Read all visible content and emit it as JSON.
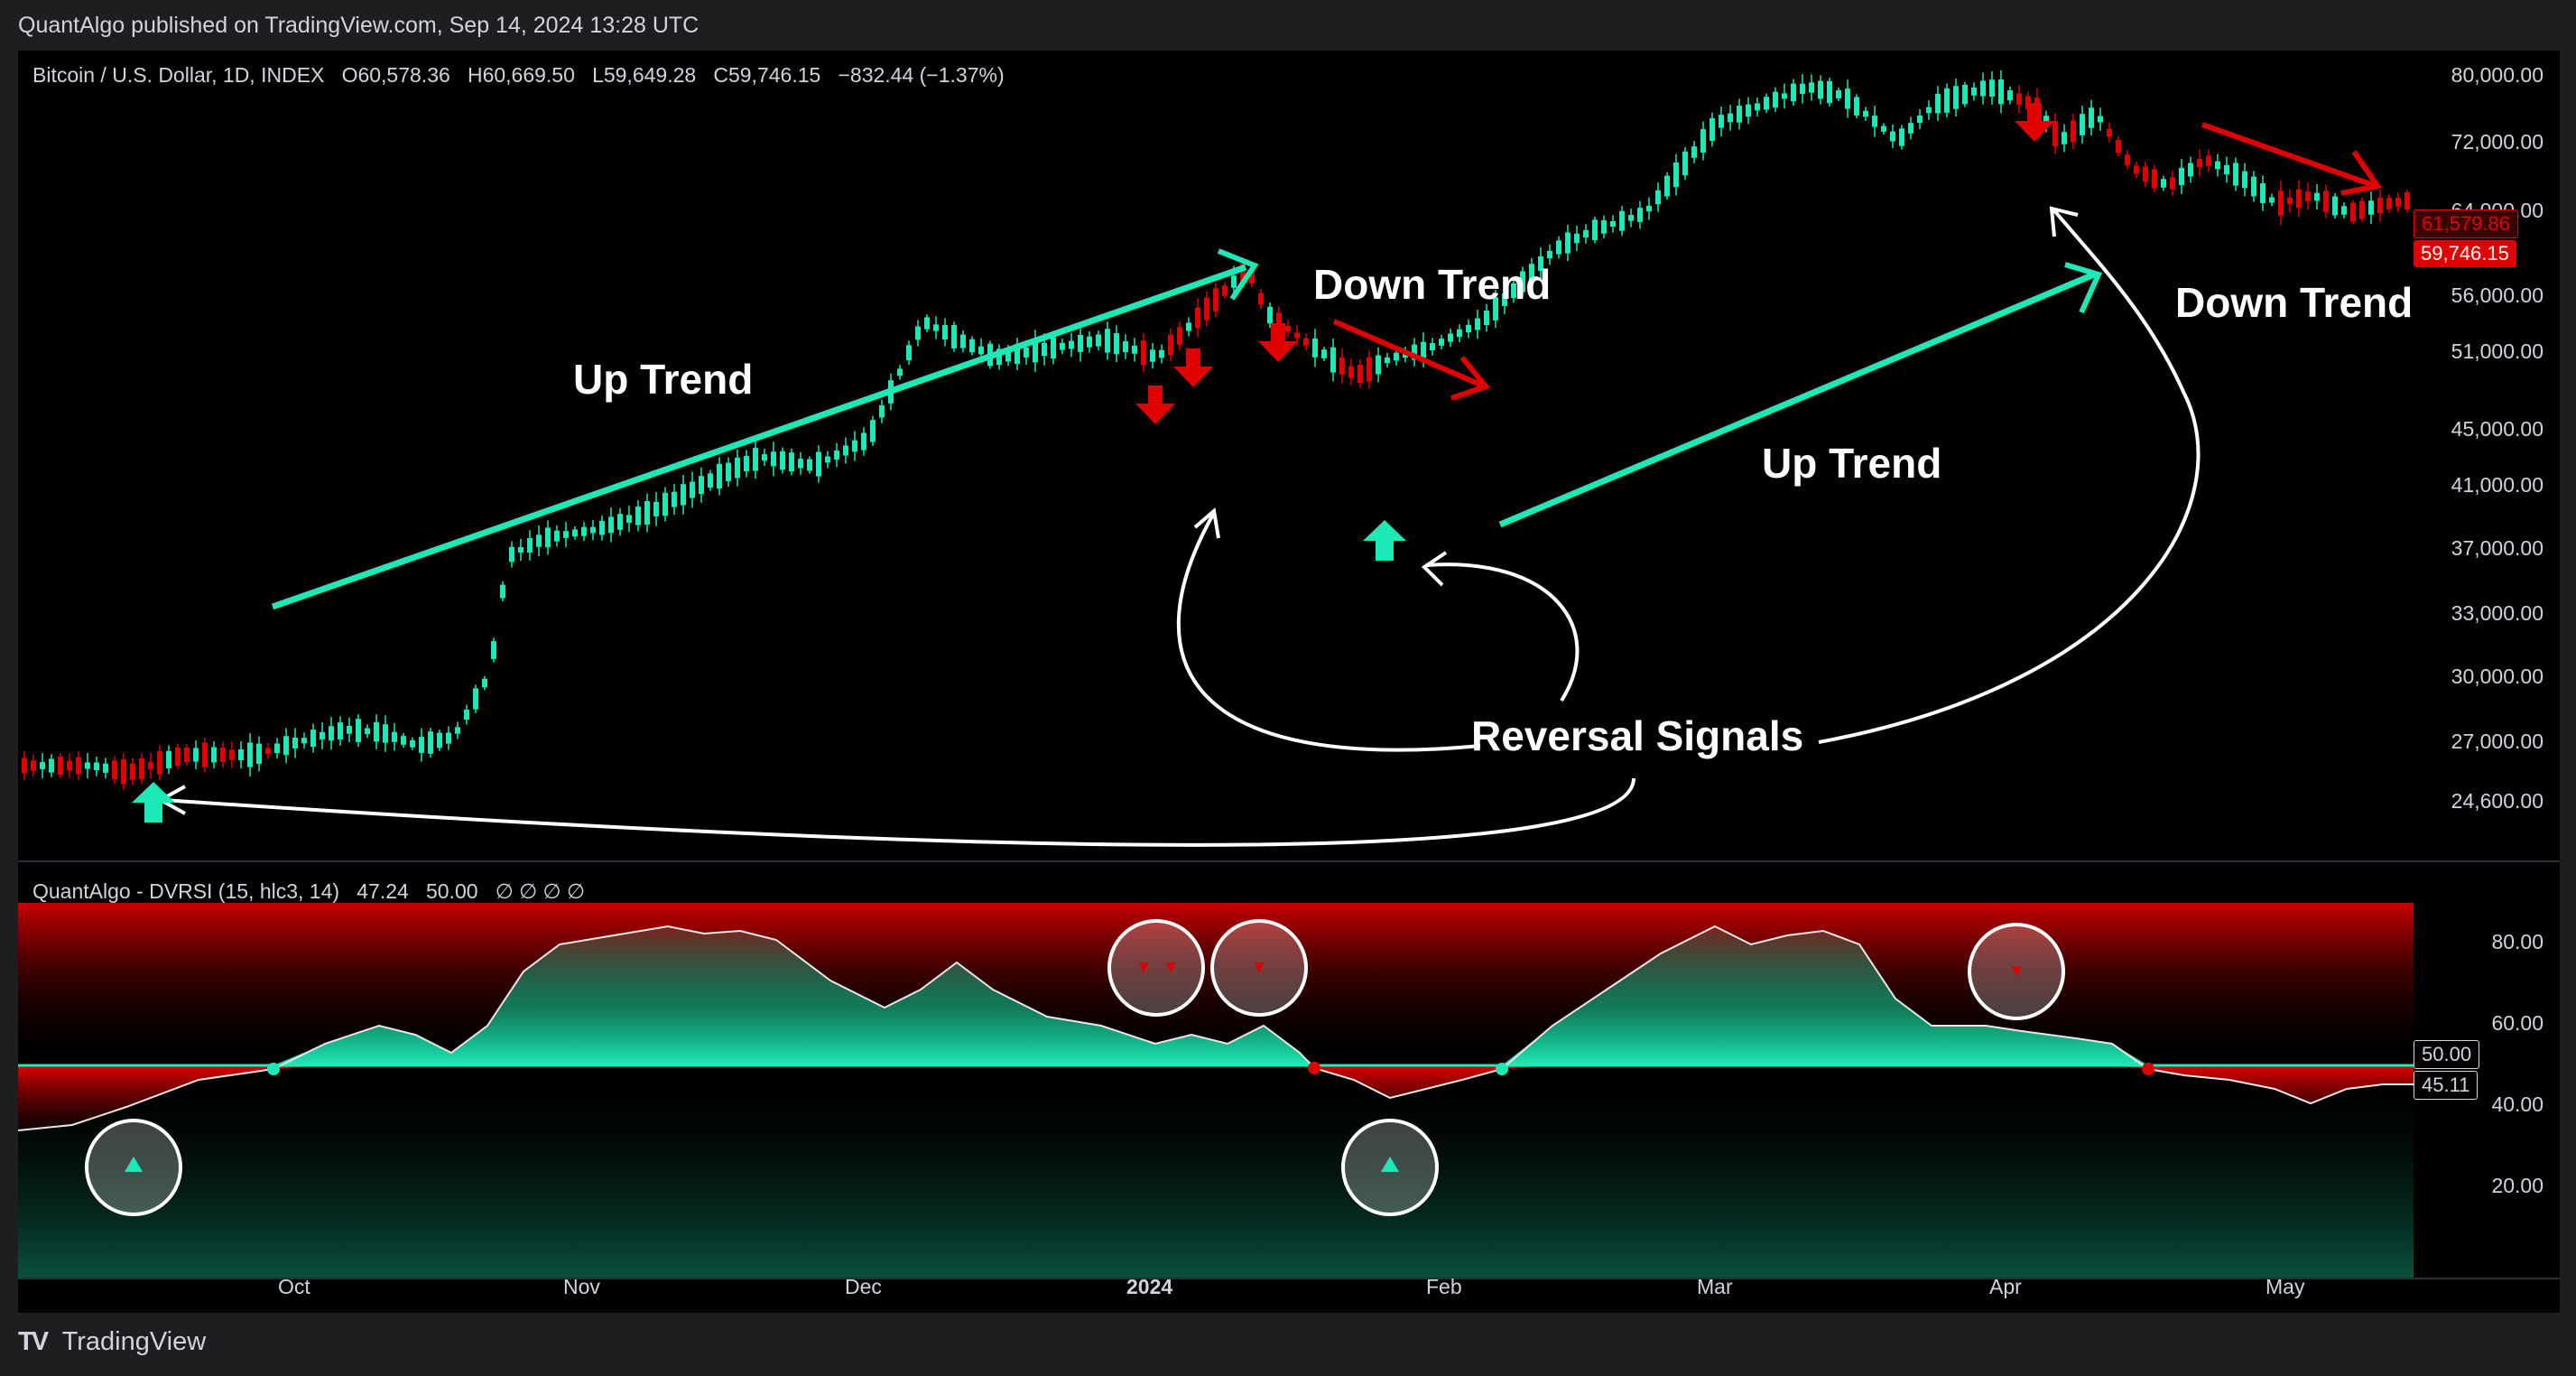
{
  "header": {
    "published_text": "QuantAlgo published on TradingView.com, Sep 14, 2024 13:28 UTC"
  },
  "main_chart": {
    "symbol_text": "Bitcoin / U.S. Dollar, 1D, INDEX",
    "open": "O60,578.36",
    "high": "H60,669.50",
    "low": "L59,649.28",
    "close": "C59,746.15",
    "change": "−832.44 (−1.37%)",
    "price_axis": [
      "80,000.00",
      "72,000.00",
      "64,000.00",
      "56,000.00",
      "51,000.00",
      "45,000.00",
      "41,000.00",
      "37,000.00",
      "33,000.00",
      "30,000.00",
      "27,000.00",
      "24,600.00"
    ],
    "tag_upper": "61,579.86",
    "tag_last": "59,746.15",
    "annotations": {
      "up_trend_1": "Up Trend",
      "down_trend_1": "Down Trend",
      "up_trend_2": "Up Trend",
      "down_trend_2": "Down Trend",
      "reversal": "Reversal Signals"
    }
  },
  "indicator": {
    "title": "QuantAlgo - DVRSI (15, hlc3, 14)",
    "value_1": "47.24",
    "value_2": "50.00",
    "na_values": "∅ ∅ ∅ ∅",
    "axis": [
      "80.00",
      "60.00",
      "40.00",
      "20.00"
    ],
    "tag_mid": "50.00",
    "tag_val": "45.11"
  },
  "time_axis": [
    "Oct",
    "Nov",
    "Dec",
    "2024",
    "Feb",
    "Mar",
    "Apr",
    "May"
  ],
  "footer": {
    "brand": "TradingView"
  },
  "colors": {
    "bull": "#1de9b6",
    "bear": "#e00000",
    "background": "#000000",
    "frame": "#1e1e21"
  }
}
